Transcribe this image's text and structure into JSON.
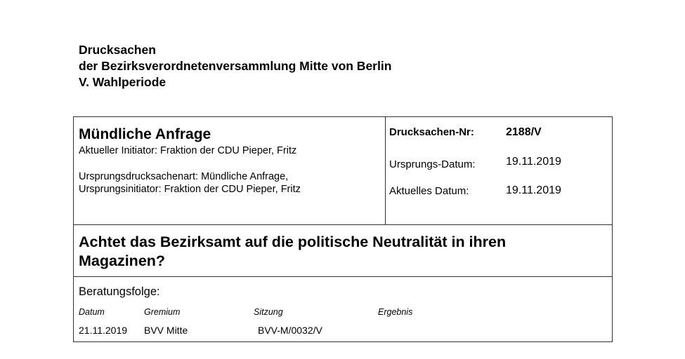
{
  "header": {
    "line1": "Drucksachen",
    "line2": "der Bezirksverordnetenversammlung Mitte von Berlin",
    "line3": "V. Wahlperiode"
  },
  "doc": {
    "type": "Mündliche Anfrage",
    "initiator": "Aktueller Initiator: Fraktion der CDU Pieper, Fritz",
    "origin_type": "Ursprungsdrucksachenart: Mündliche Anfrage,",
    "origin_initiator": "Ursprungsinitiator: Fraktion der CDU Pieper, Fritz"
  },
  "meta": {
    "nr_label": "Drucksachen-Nr:",
    "nr_value": "2188/V",
    "orig_date_label": "Ursprungs-Datum:",
    "orig_date_value": "19.11.2019",
    "curr_date_label": "Aktuelles Datum:",
    "curr_date_value": "19.11.2019"
  },
  "title": "Achtet das Bezirksamt auf die politische Neutralität in ihren Magazinen?",
  "beratung": {
    "heading": "Beratungsfolge:",
    "columns": [
      "Datum",
      "Gremium",
      "Sitzung",
      "Ergebnis"
    ],
    "rows": [
      {
        "datum": "21.11.2019",
        "gremium": "BVV Mitte",
        "sitzung": "BVV-M/0032/V",
        "ergebnis": ""
      }
    ]
  }
}
